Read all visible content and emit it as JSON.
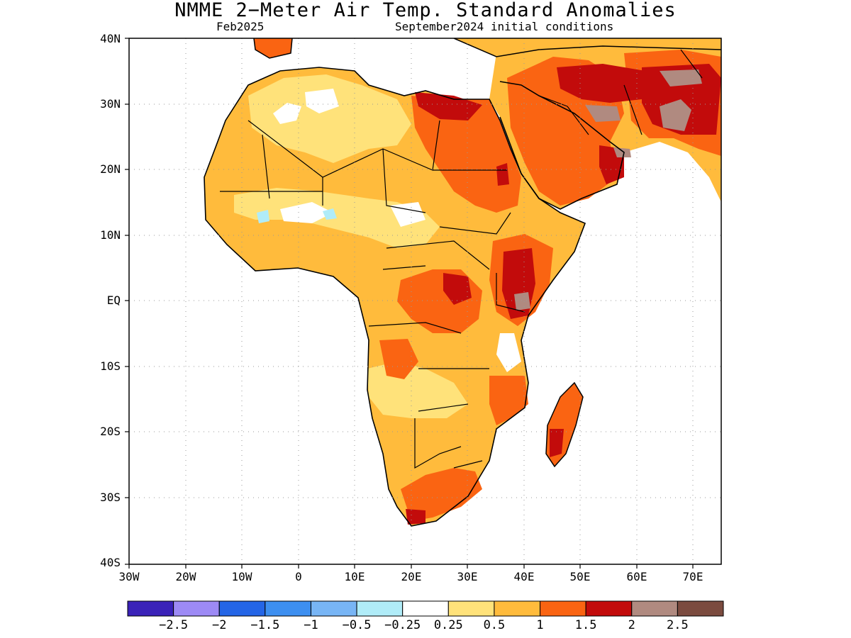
{
  "title": "NMME 2−Meter Air Temp. Standard Anomalies",
  "target_month": "Feb2025",
  "initial_conditions": "September2024 initial conditions",
  "map": {
    "lon_range": [
      -30,
      75
    ],
    "lat_range": [
      -40,
      40
    ],
    "lat_ticks": [
      "40N",
      "30N",
      "20N",
      "10N",
      "EQ",
      "10S",
      "20S",
      "30S",
      "40S"
    ],
    "lon_ticks": [
      "30W",
      "20W",
      "10W",
      "0",
      "10E",
      "20E",
      "30E",
      "40E",
      "50E",
      "60E",
      "70E"
    ],
    "grid": "dotted"
  },
  "colorbar": {
    "colors": [
      "#3a22b8",
      "#9d8af5",
      "#2465e6",
      "#3d8ff0",
      "#78b5f5",
      "#b0ecf8",
      "#ffffff",
      "#ffe27a",
      "#ffbb3c",
      "#fa6412",
      "#c20b0b",
      "#b08a80",
      "#7b4b3f"
    ],
    "labels": [
      "−2.5",
      "−2",
      "−1.5",
      "−1",
      "−0.5",
      "−0.25",
      "0.25",
      "0.5",
      "1",
      "1.5",
      "2",
      "2.5"
    ]
  }
}
